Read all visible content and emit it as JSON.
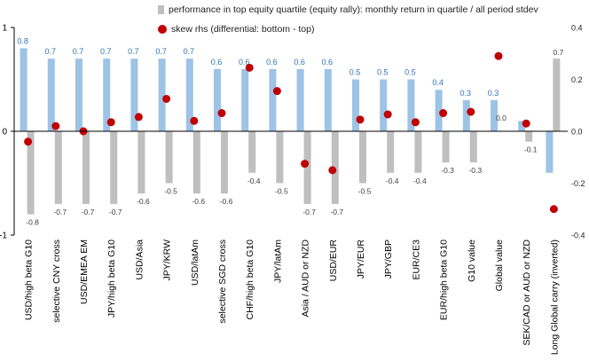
{
  "chart_data": {
    "type": "bar",
    "legend": [
      {
        "key": "bars",
        "label": "performance in top equity quartile (equity rally): monthly return in quartile / all period stdev",
        "color": "#bfbfbf"
      },
      {
        "key": "dots",
        "label": "skew rhs (differential: bottom - top)",
        "color": "#c00000"
      }
    ],
    "categories": [
      "USD/high beta G10",
      "selective CNY cross",
      "USD/EMEA EM",
      "JPY/high beta G10",
      "USD/Asia",
      "JPY/KRW",
      "USD/latAm",
      "selective SGD cross",
      "CHF/high beta G10",
      "JPY/latAm",
      "Asia / AUD or NZD",
      "USD/EUR",
      "JPY/EUR",
      "JPY/GBP",
      "EUR/CE3",
      "EUR/high beta G10",
      "G10 value",
      "Global value",
      "SEK/CAD or AUD or NZD",
      "Long Global carry (inverted)"
    ],
    "series": [
      {
        "values": [
          0.8,
          0.7,
          0.7,
          0.7,
          0.7,
          0.7,
          0.7,
          0.6,
          0.6,
          0.6,
          0.6,
          0.6,
          0.5,
          0.5,
          0.5,
          0.4,
          0.3,
          0.3,
          0.1,
          -0.4
        ],
        "label_values": [
          "0.8",
          "0.7",
          "0.7",
          "0.7",
          "0.7",
          "0.7",
          "0.7",
          "0.6",
          "0.6",
          "0.6",
          "0.6",
          "0.6",
          "0.5",
          "0.5",
          "0.5",
          "0.4",
          "0.3",
          "0.3",
          "",
          ""
        ],
        "color": "#9dc3e6",
        "axis": "left"
      },
      {
        "values": [
          -0.8,
          -0.7,
          -0.7,
          -0.7,
          -0.6,
          -0.5,
          -0.6,
          -0.6,
          -0.4,
          -0.5,
          -0.7,
          -0.7,
          -0.5,
          -0.4,
          -0.4,
          -0.3,
          -0.3,
          0.0,
          -0.1,
          0.7
        ],
        "label_values": [
          "-0.8",
          "-0.7",
          "-0.7",
          "-0.7",
          "-0.6",
          "-0.5",
          "-0.6",
          "-0.6",
          "-0.4",
          "-0.5",
          "-0.7",
          "-0.7",
          "-0.5",
          "-0.4",
          "-0.4",
          "-0.3",
          "-0.3",
          "0.0",
          "-0.1",
          "0.7"
        ],
        "color": "#bfbfbf",
        "axis": "left"
      },
      {
        "values": [
          -0.04,
          0.02,
          0.0,
          0.035,
          0.055,
          0.125,
          0.04,
          0.07,
          0.245,
          0.155,
          -0.125,
          -0.15,
          0.045,
          0.065,
          0.035,
          0.07,
          0.075,
          0.29,
          0.03,
          -0.3
        ],
        "color": "#c00000",
        "axis": "right",
        "type": "scatter"
      }
    ],
    "left_axis": {
      "ylim": [
        -1,
        1
      ],
      "ticks": [
        "-1",
        "0",
        "1"
      ],
      "tick_values": [
        -1,
        0,
        1
      ]
    },
    "right_axis": {
      "ylim": [
        -0.4,
        0.4
      ],
      "ticks": [
        "-0.4",
        "-0.2",
        "0.0",
        "0.2",
        "0.4"
      ],
      "tick_values": [
        -0.4,
        -0.2,
        0.0,
        0.2,
        0.4
      ]
    },
    "grid": false,
    "legend_position": "top"
  }
}
